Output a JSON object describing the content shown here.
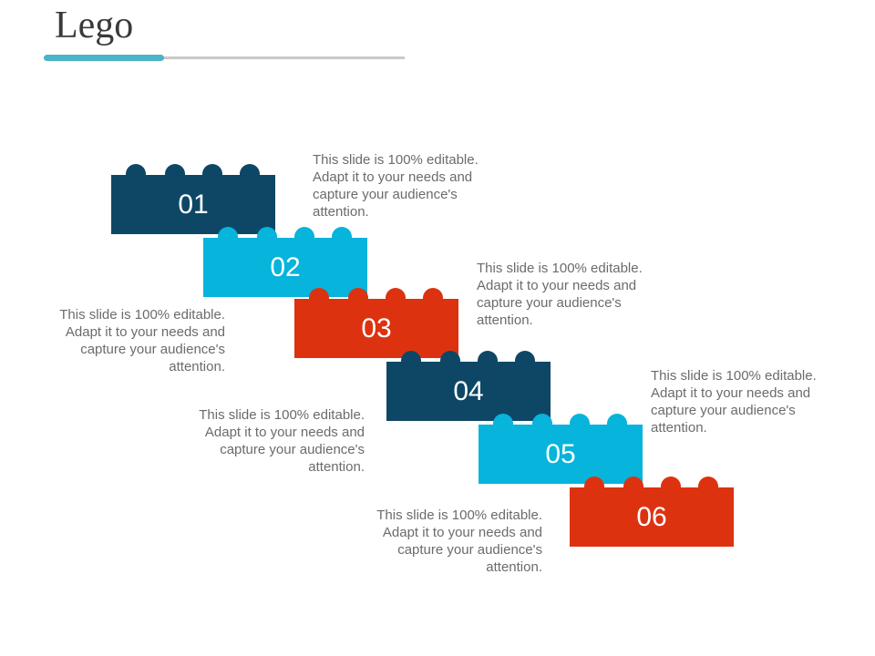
{
  "slide": {
    "title": "Lego"
  },
  "colors": {
    "navy": "#0e4766",
    "cyan": "#06b4dc",
    "red": "#dd3210",
    "text": "#6b6b6b",
    "accent": "#4db3c9"
  },
  "steps": [
    {
      "number": "01",
      "color": "navy",
      "description": "This slide is 100% editable. Adapt it to your needs and capture your audience's attention."
    },
    {
      "number": "02",
      "color": "cyan",
      "description": "This slide is 100% editable. Adapt it to your needs and capture your audience's attention."
    },
    {
      "number": "03",
      "color": "red",
      "description": "This slide is 100% editable. Adapt it to your needs and capture your audience's attention."
    },
    {
      "number": "04",
      "color": "navy",
      "description": "This slide is 100% editable. Adapt it to your needs and capture your audience's attention."
    },
    {
      "number": "05",
      "color": "cyan",
      "description": "This slide is 100% editable. Adapt it to your needs and capture your audience's attention."
    },
    {
      "number": "06",
      "color": "red",
      "description": "This slide is 100% editable. Adapt it to your needs and capture your audience's attention."
    }
  ]
}
